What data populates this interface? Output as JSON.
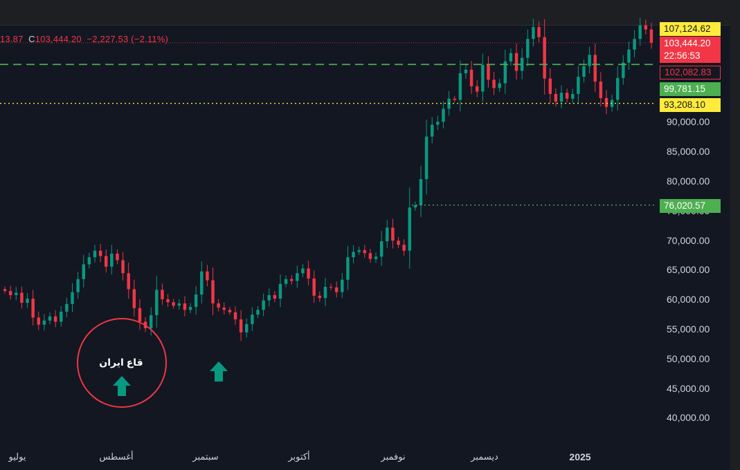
{
  "header": {
    "ohlc_partial": "13.87",
    "close_label": "C",
    "close_value": "103,444.20",
    "change": "−2,227.53 (−2.11%)"
  },
  "price_tags": {
    "high": "107,124.62",
    "last": "103,444.20",
    "countdown": "22:56:53",
    "red_line": "102,082.83",
    "green_line": "99,781.15",
    "yellow_line": "93,208.10",
    "low_line": "76,020.57"
  },
  "annotation": {
    "label": "قاع ايران"
  },
  "colors": {
    "background": "#131722",
    "up": "#089981",
    "down": "#f23645",
    "green_tag": "#4caf50",
    "yellow_tag": "#ffeb3b",
    "red_tag": "#f23645",
    "arrow": "#089981"
  },
  "chart_data": {
    "type": "candlestick",
    "y_axis": {
      "ticks": [
        "90,000.00",
        "85,000.00",
        "80,000.00",
        "75,000.00",
        "70,000.00",
        "65,000.00",
        "60,000.00",
        "55,000.00",
        "50,000.00",
        "45,000.00",
        "40,000.00"
      ],
      "tick_values": [
        90000,
        85000,
        80000,
        75000,
        70000,
        65000,
        60000,
        55000,
        50000,
        45000,
        40000
      ]
    },
    "x_axis": {
      "labels": [
        "يوليو",
        "أغسطس",
        "سبتمبر",
        "أكتوبر",
        "نوفمبر",
        "ديسمبر",
        "2025"
      ]
    },
    "horizontal_levels": [
      {
        "value": 99781.15,
        "style": "dashed",
        "color": "#4caf50"
      },
      {
        "value": 93208.1,
        "style": "dotted",
        "color": "#ffeb3b"
      },
      {
        "value": 76020.57,
        "style": "dotted",
        "color": "#4caf50"
      }
    ],
    "candles_close": [
      61500,
      60800,
      61200,
      59500,
      60200,
      57000,
      55800,
      56500,
      57200,
      56300,
      58000,
      59300,
      61300,
      63500,
      66000,
      67200,
      68300,
      67400,
      65600,
      67800,
      66700,
      64500,
      61800,
      58600,
      56300,
      55200,
      57400,
      61700,
      60100,
      59600,
      59000,
      59400,
      58300,
      58800,
      60900,
      64800,
      63300,
      59400,
      58700,
      58300,
      57900,
      56700,
      54500,
      55900,
      57500,
      58300,
      59900,
      60800,
      60200,
      62700,
      63500,
      63200,
      64500,
      65300,
      63600,
      60700,
      60300,
      62200,
      62100,
      61300,
      63400,
      67200,
      68100,
      68400,
      67900,
      66900,
      67300,
      69900,
      72200,
      70000,
      69300,
      68300,
      75600,
      76000,
      80400,
      87600,
      89600,
      90100,
      92300,
      94000,
      93800,
      98300,
      98900,
      96100,
      95200,
      99700,
      97200,
      95800,
      96600,
      100300,
      101700,
      98700,
      100900,
      104100,
      106100,
      104400,
      97400,
      94800,
      93500,
      95000,
      94000,
      94800,
      97700,
      99500,
      101400,
      96900,
      94100,
      92600,
      93800,
      97500,
      100100,
      102300,
      104100,
      106400,
      105700,
      103444
    ]
  }
}
